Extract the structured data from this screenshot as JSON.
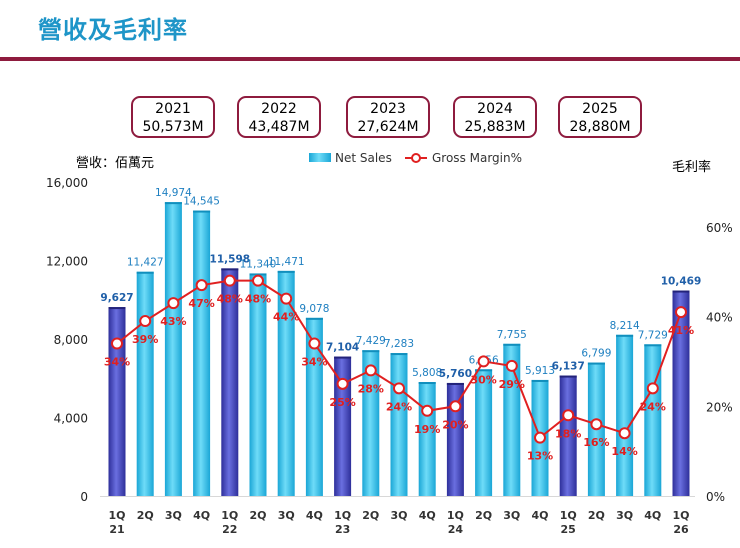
{
  "title": "營收及毛利率",
  "left_axis_label": "營收：佰萬元",
  "right_axis_label": "毛利率",
  "annual_totals": [
    {
      "year": "2021",
      "value": "50,573M"
    },
    {
      "year": "2022",
      "value": "43,487M"
    },
    {
      "year": "2023",
      "value": "27,624M"
    },
    {
      "year": "2024",
      "value": "25,883M"
    },
    {
      "year": "2025",
      "value": "28,880M"
    }
  ],
  "colors": {
    "bar_light": "#29bde8",
    "bar_dark": "#3d3fb8",
    "line": "#e02020",
    "title": "#1e95c8",
    "accent": "#8e1b3e",
    "bold_label": "#1f5fa8",
    "label": "#1e7fc0"
  },
  "chart_data": {
    "type": "bar",
    "categories": [
      "1Q",
      "2Q",
      "3Q",
      "4Q",
      "1Q",
      "2Q",
      "3Q",
      "4Q",
      "1Q",
      "2Q",
      "3Q",
      "4Q",
      "1Q",
      "2Q",
      "3Q",
      "4Q",
      "1Q",
      "2Q",
      "3Q",
      "4Q",
      "1Q"
    ],
    "year_labels": [
      "21",
      "",
      "",
      "",
      "22",
      "",
      "",
      "",
      "23",
      "",
      "",
      "",
      "24",
      "",
      "",
      "",
      "25",
      "",
      "",
      "",
      "26"
    ],
    "series": [
      {
        "name": "Net Sales",
        "type": "bar",
        "axis": "left",
        "values": [
          9627,
          11427,
          14974,
          14545,
          11598,
          11340,
          11471,
          9078,
          7104,
          7429,
          7283,
          5808,
          5760,
          6456,
          7755,
          5913,
          6137,
          6799,
          8214,
          7729,
          10469
        ],
        "labels": [
          "9,627",
          "11,427",
          "14,974",
          "14,545",
          "11,598",
          "11,340",
          "11,471",
          "9,078",
          "7,104",
          "7,429",
          "7,283",
          "5,808",
          "5,760",
          "6,456",
          "7,755",
          "5,913",
          "6,137",
          "6,799",
          "8,214",
          "7,729",
          "10,469"
        ]
      },
      {
        "name": "Gross Margin%",
        "type": "line",
        "axis": "right",
        "values": [
          34,
          39,
          43,
          47,
          48,
          48,
          44,
          34,
          25,
          28,
          24,
          19,
          20,
          30,
          29,
          13,
          18,
          16,
          14,
          24,
          41
        ],
        "labels": [
          "34%",
          "39%",
          "43%",
          "47%",
          "48%",
          "48%",
          "44%",
          "34%",
          "25%",
          "28%",
          "24%",
          "19%",
          "20%",
          "30%",
          "29%",
          "13%",
          "18%",
          "16%",
          "14%",
          "24%",
          "41%"
        ]
      }
    ],
    "highlight_quarters": [
      0,
      4,
      8,
      12,
      16,
      20
    ],
    "y_left": {
      "min": 0,
      "max": 16000,
      "ticks": [
        "0",
        "4,000",
        "8,000",
        "12,000",
        "16,000"
      ],
      "tick_values": [
        0,
        4000,
        8000,
        12000,
        16000
      ]
    },
    "y_right": {
      "min": 0,
      "max": 70,
      "ticks": [
        "0%",
        "20%",
        "40%",
        "60%"
      ],
      "tick_values": [
        0,
        20,
        40,
        60
      ]
    },
    "legend": [
      "Net Sales",
      "Gross Margin%"
    ]
  }
}
